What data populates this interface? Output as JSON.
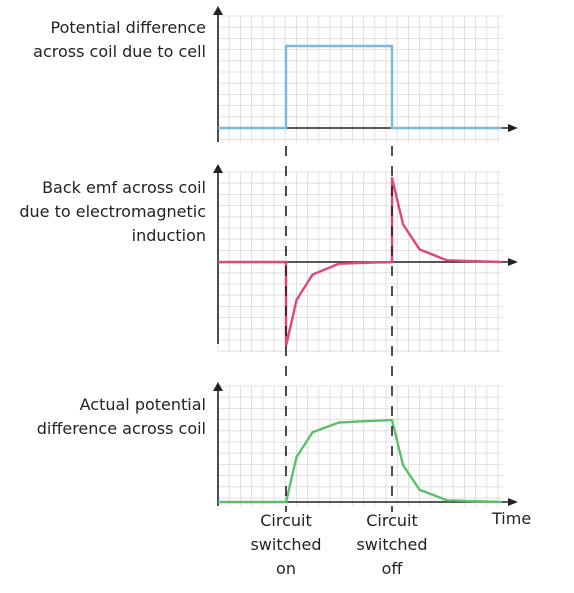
{
  "chart_data": [
    {
      "type": "line",
      "ylabel_lines": [
        "Potential difference",
        "across coil due to cell"
      ],
      "series": [
        {
          "color": "#7ab8dd",
          "x": [
            0,
            1,
            1,
            2,
            2,
            3
          ],
          "y": [
            0,
            0,
            1,
            1,
            0,
            0
          ]
        }
      ],
      "xlim": [
        0,
        3
      ],
      "ylim": [
        -0.1,
        1.2
      ],
      "grid": true
    },
    {
      "type": "line",
      "ylabel_lines": [
        "Back emf across coil",
        "due to electromagnetic",
        "induction"
      ],
      "series": [
        {
          "color": "#e0457b",
          "shape": "exponential decay",
          "x": [
            0,
            1,
            1,
            1.1,
            1.25,
            1.5,
            2,
            2,
            2.1,
            2.25,
            2.5,
            3
          ],
          "y": [
            0,
            0,
            -1,
            -0.45,
            -0.15,
            -0.02,
            0,
            1,
            0.45,
            0.15,
            0.02,
            0
          ]
        }
      ],
      "xlim": [
        0,
        3
      ],
      "ylim": [
        -1.1,
        1.1
      ],
      "grid": true
    },
    {
      "type": "line",
      "ylabel_lines": [
        "Actual potential",
        "difference across coil"
      ],
      "series": [
        {
          "color": "#5cbf6a",
          "x": [
            0,
            1,
            1.1,
            1.25,
            1.5,
            2,
            2.1,
            2.25,
            2.5,
            3
          ],
          "y": [
            0,
            0,
            0.55,
            0.85,
            0.97,
            1,
            0.45,
            0.15,
            0.02,
            0
          ]
        }
      ],
      "xlim": [
        0,
        3
      ],
      "ylim": [
        0,
        1.2
      ],
      "grid": true
    }
  ],
  "xaxis": {
    "label": "Time",
    "events": [
      {
        "x": 1,
        "lines": [
          "Circuit",
          "switched",
          "on"
        ]
      },
      {
        "x": 2,
        "lines": [
          "Circuit",
          "switched",
          "off"
        ]
      }
    ]
  },
  "colors": {
    "axis": "#222222",
    "grid": "#d9d9d9",
    "dashed": "#222222"
  }
}
